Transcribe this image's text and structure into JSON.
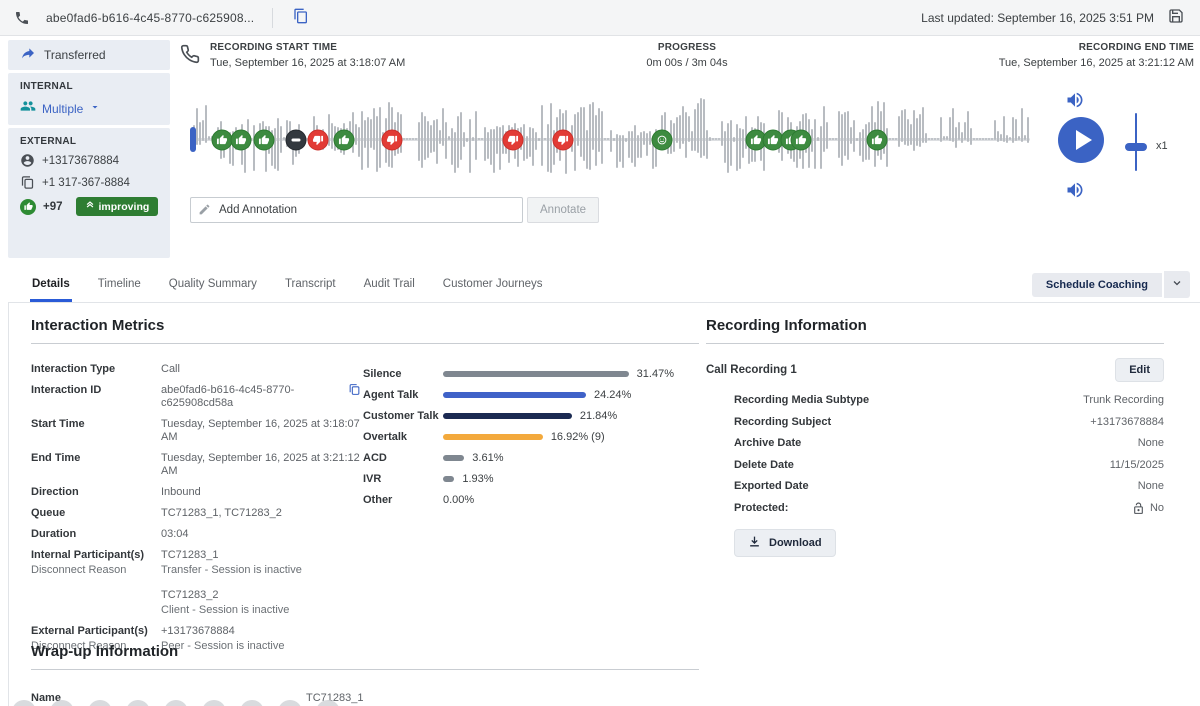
{
  "accent_blue": "#3b63c4",
  "top_bar": {
    "interaction_id": "abe0fad6-b616-4c45-8770-c625908...",
    "last_updated": "Last updated: September 16, 2025 3:51 PM"
  },
  "sidebar": {
    "transferred_label": "Transferred",
    "internal_heading": "INTERNAL",
    "internal_value": "Multiple",
    "external_heading": "EXTERNAL",
    "external_phone_1": "+13173678884",
    "external_phone_2": "+1 317-367-8884",
    "sentiment_score": "+97",
    "sentiment_trend": "improving"
  },
  "player": {
    "start_label": "RECORDING START TIME",
    "start_value": "Tue, September 16, 2025 at 3:18:07 AM",
    "progress_label": "PROGRESS",
    "progress_value": "0m 00s / 3m 04s",
    "end_label": "RECORDING END TIME",
    "end_value": "Tue, September 16, 2025 at 3:21:12 AM",
    "speed": "x1",
    "annotation_placeholder": "Add Annotation",
    "annotate_button": "Annotate",
    "markers": [
      {
        "type": "thumb-up",
        "pos": 3.8
      },
      {
        "type": "thumb-up",
        "pos": 6.1
      },
      {
        "type": "thumb-up",
        "pos": 8.8
      },
      {
        "type": "pause",
        "pos": 12.6
      },
      {
        "type": "thumb-down",
        "pos": 15.2
      },
      {
        "type": "thumb-up",
        "pos": 18.3
      },
      {
        "type": "thumb-down",
        "pos": 24.0
      },
      {
        "type": "thumb-down",
        "pos": 38.5
      },
      {
        "type": "thumb-down",
        "pos": 44.4
      },
      {
        "type": "smiley",
        "pos": 56.2
      },
      {
        "type": "thumb-up",
        "pos": 67.4
      },
      {
        "type": "thumb-up",
        "pos": 69.4
      },
      {
        "type": "thumb-up",
        "pos": 71.5
      },
      {
        "type": "thumb-up",
        "pos": 72.7
      },
      {
        "type": "thumb-up",
        "pos": 81.8
      }
    ]
  },
  "tabs": [
    {
      "label": "Details",
      "active": true
    },
    {
      "label": "Timeline",
      "active": false
    },
    {
      "label": "Quality Summary",
      "active": false
    },
    {
      "label": "Transcript",
      "active": false
    },
    {
      "label": "Audit Trail",
      "active": false
    },
    {
      "label": "Customer Journeys",
      "active": false
    }
  ],
  "actions": {
    "schedule_coaching": "Schedule Coaching"
  },
  "interaction_metrics": {
    "heading": "Interaction Metrics",
    "fields": [
      {
        "label": "Interaction Type",
        "value": "Call"
      },
      {
        "label": "Interaction ID",
        "value": "abe0fad6-b616-4c45-8770-c625908cd58a",
        "copy": true
      },
      {
        "label": "Start Time",
        "value": "Tuesday, September 16, 2025 at 3:18:07 AM"
      },
      {
        "label": "End Time",
        "value": "Tuesday, September 16, 2025 at 3:21:12 AM"
      },
      {
        "label": "Direction",
        "value": "Inbound"
      },
      {
        "label": "Queue",
        "value": "TC71283_1, TC71283_2"
      },
      {
        "label": "Duration",
        "value": "03:04"
      },
      {
        "label": "Internal Participant(s)",
        "sublabel": "Disconnect Reason",
        "entries": [
          [
            "TC71283_1",
            "Transfer - Session is inactive"
          ],
          [
            "TC71283_2",
            "Client - Session is inactive"
          ]
        ]
      },
      {
        "label": "External Participant(s)",
        "sublabel": "Disconnect Reason",
        "entries": [
          [
            "+13173678884",
            "Peer - Session is inactive"
          ]
        ]
      }
    ],
    "metrics": [
      {
        "label": "Silence",
        "pct": 31.47,
        "text": "31.47%",
        "color": "#7f8790"
      },
      {
        "label": "Agent Talk",
        "pct": 24.24,
        "text": "24.24%",
        "color": "#3f62c8"
      },
      {
        "label": "Customer Talk",
        "pct": 21.84,
        "text": "21.84%",
        "color": "#1b2a52"
      },
      {
        "label": "Overtalk",
        "pct": 16.92,
        "text": "16.92% (9)",
        "color": "#f3a93c"
      },
      {
        "label": "ACD",
        "pct": 3.61,
        "text": "3.61%",
        "color": "#7f8790"
      },
      {
        "label": "IVR",
        "pct": 1.93,
        "text": "1.93%",
        "color": "#7f8790"
      },
      {
        "label": "Other",
        "pct": 0,
        "text": "0.00%",
        "color": "#7f8790"
      }
    ]
  },
  "recording_info": {
    "heading": "Recording Information",
    "recording_title": "Call Recording 1",
    "edit_button": "Edit",
    "rows": [
      {
        "label": "Recording Media Subtype",
        "value": "Trunk Recording"
      },
      {
        "label": "Recording Subject",
        "value": "+13173678884"
      },
      {
        "label": "Archive Date",
        "value": "None"
      },
      {
        "label": "Delete Date",
        "value": "11/15/2025"
      },
      {
        "label": "Exported Date",
        "value": "None"
      },
      {
        "label": "Protected:",
        "value": "No",
        "icon": "lock-open"
      }
    ],
    "download_button": "Download"
  },
  "wrapup": {
    "heading": "Wrap-up Information",
    "name_label": "Name",
    "name_value": "TC71283_1"
  }
}
